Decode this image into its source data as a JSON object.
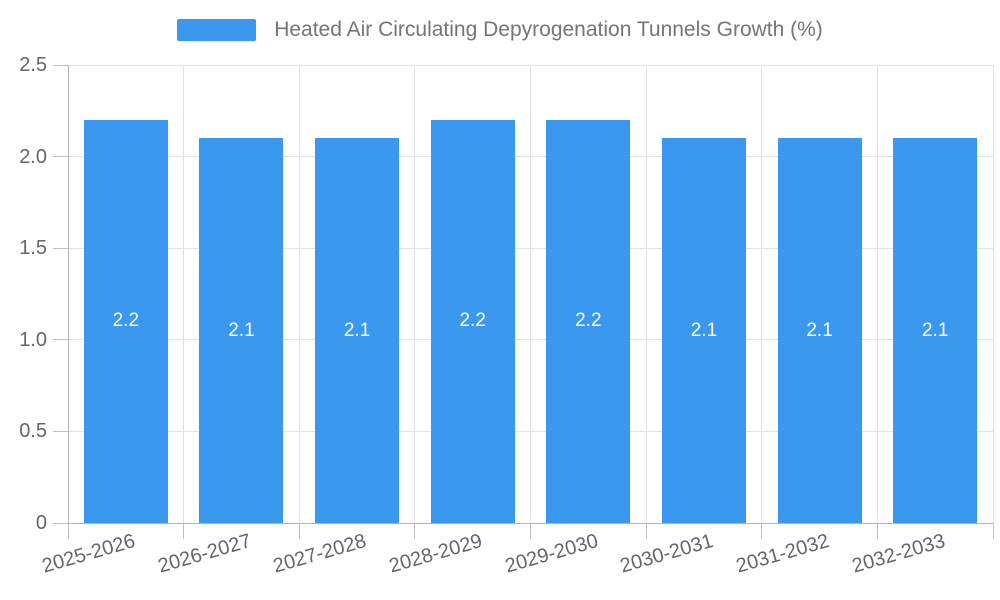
{
  "legend": {
    "label": "Heated Air Circulating Depyrogenation Tunnels Growth (%)",
    "color": "#3a99ee"
  },
  "chart_data": {
    "type": "bar",
    "title": "",
    "series_name": "Heated Air Circulating Depyrogenation Tunnels Growth (%)",
    "categories": [
      "2025-2026",
      "2026-2027",
      "2027-2028",
      "2028-2029",
      "2029-2030",
      "2030-2031",
      "2031-2032",
      "2032-2033"
    ],
    "values": [
      2.2,
      2.1,
      2.1,
      2.2,
      2.2,
      2.1,
      2.1,
      2.1
    ],
    "value_labels": [
      "2.2",
      "2.1",
      "2.1",
      "2.2",
      "2.2",
      "2.1",
      "2.1",
      "2.1"
    ],
    "xlabel": "",
    "ylabel": "",
    "ylim": [
      0,
      2.5
    ],
    "yticks": [
      "0",
      "0.5",
      "1.0",
      "1.5",
      "2.0",
      "2.5"
    ],
    "grid": true,
    "legend_position": "top",
    "bar_color": "#3a99ee",
    "value_label_color": "#ffffff",
    "axis_text_color": "#666666",
    "gridline_color": "#e2e2e2",
    "axis_line_color": "#b3b3b3"
  }
}
